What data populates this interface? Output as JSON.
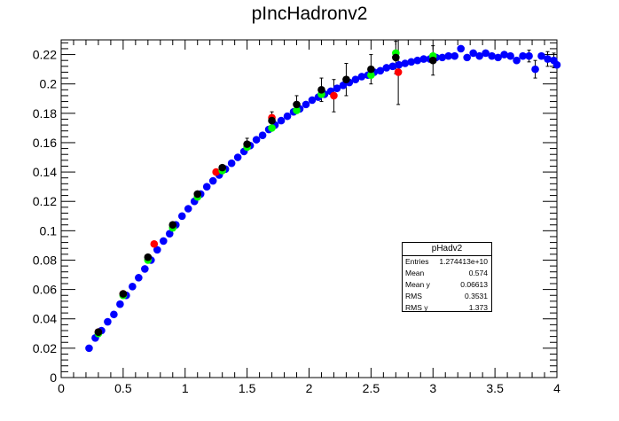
{
  "title": "pIncHadronv2",
  "chart_data": {
    "type": "scatter",
    "title": "pIncHadronv2",
    "xlabel": "",
    "ylabel": "",
    "xlim": [
      0,
      4
    ],
    "ylim": [
      0,
      0.23
    ],
    "x_ticks": [
      "0",
      "0.5",
      "1",
      "1.5",
      "2",
      "2.5",
      "3",
      "3.5",
      "4"
    ],
    "y_ticks": [
      "0",
      "0.02",
      "0.04",
      "0.06",
      "0.08",
      "0.1",
      "0.12",
      "0.14",
      "0.16",
      "0.18",
      "0.2",
      "0.22"
    ],
    "series": [
      {
        "color": "#0000ff",
        "points": [
          [
            0.225,
            0.02
          ],
          [
            0.275,
            0.027
          ],
          [
            0.325,
            0.032
          ],
          [
            0.375,
            0.038
          ],
          [
            0.425,
            0.043
          ],
          [
            0.475,
            0.05
          ],
          [
            0.525,
            0.056
          ],
          [
            0.575,
            0.062
          ],
          [
            0.625,
            0.068
          ],
          [
            0.675,
            0.074
          ],
          [
            0.725,
            0.08
          ],
          [
            0.775,
            0.087
          ],
          [
            0.825,
            0.093
          ],
          [
            0.875,
            0.098
          ],
          [
            0.925,
            0.104
          ],
          [
            0.975,
            0.11
          ],
          [
            1.025,
            0.115
          ],
          [
            1.075,
            0.12
          ],
          [
            1.125,
            0.125
          ],
          [
            1.175,
            0.13
          ],
          [
            1.225,
            0.134
          ],
          [
            1.275,
            0.138
          ],
          [
            1.325,
            0.142
          ],
          [
            1.375,
            0.146
          ],
          [
            1.425,
            0.15
          ],
          [
            1.475,
            0.154
          ],
          [
            1.525,
            0.158
          ],
          [
            1.575,
            0.162
          ],
          [
            1.625,
            0.165
          ],
          [
            1.675,
            0.169
          ],
          [
            1.725,
            0.172
          ],
          [
            1.775,
            0.175
          ],
          [
            1.825,
            0.178
          ],
          [
            1.875,
            0.181
          ],
          [
            1.925,
            0.183
          ],
          [
            1.975,
            0.186
          ],
          [
            2.025,
            0.189
          ],
          [
            2.075,
            0.191
          ],
          [
            2.125,
            0.193
          ],
          [
            2.175,
            0.195
          ],
          [
            2.225,
            0.197
          ],
          [
            2.275,
            0.199
          ],
          [
            2.325,
            0.201
          ],
          [
            2.375,
            0.203
          ],
          [
            2.425,
            0.205
          ],
          [
            2.475,
            0.206
          ],
          [
            2.525,
            0.208
          ],
          [
            2.575,
            0.209
          ],
          [
            2.625,
            0.211
          ],
          [
            2.675,
            0.212
          ],
          [
            2.725,
            0.213
          ],
          [
            2.775,
            0.214
          ],
          [
            2.825,
            0.215
          ],
          [
            2.875,
            0.216
          ],
          [
            2.925,
            0.217
          ],
          [
            2.975,
            0.217
          ],
          [
            3.025,
            0.218
          ],
          [
            3.075,
            0.218
          ],
          [
            3.125,
            0.219
          ],
          [
            3.175,
            0.219
          ],
          [
            3.225,
            0.224
          ],
          [
            3.275,
            0.218
          ],
          [
            3.325,
            0.221
          ],
          [
            3.375,
            0.219
          ],
          [
            3.425,
            0.221
          ],
          [
            3.475,
            0.219
          ],
          [
            3.525,
            0.218
          ],
          [
            3.575,
            0.22
          ],
          [
            3.625,
            0.219
          ],
          [
            3.675,
            0.216
          ],
          [
            3.725,
            0.219
          ],
          [
            3.775,
            0.219
          ],
          [
            3.825,
            0.21
          ],
          [
            3.875,
            0.219
          ],
          [
            3.925,
            0.217
          ],
          [
            3.975,
            0.216
          ],
          [
            4.0,
            0.213
          ]
        ]
      },
      {
        "color": "#ff0000",
        "points": [
          [
            0.3,
            0.031
          ],
          [
            0.5,
            0.057
          ],
          [
            0.75,
            0.091
          ],
          [
            1.25,
            0.14
          ],
          [
            1.7,
            0.177
          ],
          [
            2.2,
            0.192
          ],
          [
            2.72,
            0.208
          ]
        ]
      },
      {
        "color": "#00ff00",
        "points": [
          [
            0.3,
            0.03
          ],
          [
            0.5,
            0.056
          ],
          [
            0.7,
            0.08
          ],
          [
            0.9,
            0.102
          ],
          [
            1.1,
            0.123
          ],
          [
            1.3,
            0.141
          ],
          [
            1.5,
            0.157
          ],
          [
            1.7,
            0.17
          ],
          [
            1.9,
            0.182
          ],
          [
            2.1,
            0.193
          ],
          [
            2.5,
            0.206
          ],
          [
            2.7,
            0.221
          ],
          [
            3.0,
            0.219
          ]
        ]
      },
      {
        "color": "#000000",
        "points": [
          [
            0.3,
            0.031
          ],
          [
            0.5,
            0.057
          ],
          [
            0.7,
            0.082
          ],
          [
            0.9,
            0.104
          ],
          [
            1.1,
            0.125
          ],
          [
            1.3,
            0.143
          ],
          [
            1.5,
            0.159
          ],
          [
            1.7,
            0.175
          ],
          [
            1.9,
            0.186
          ],
          [
            2.1,
            0.196
          ],
          [
            2.3,
            0.203
          ],
          [
            2.5,
            0.21
          ],
          [
            2.7,
            0.218
          ],
          [
            3.0,
            0.216
          ]
        ]
      }
    ],
    "error_bars": [
      {
        "x": 1.5,
        "y": 0.159,
        "err": 0.004
      },
      {
        "x": 1.7,
        "y": 0.175,
        "err": 0.006
      },
      {
        "x": 1.9,
        "y": 0.186,
        "err": 0.006
      },
      {
        "x": 2.1,
        "y": 0.196,
        "err": 0.008
      },
      {
        "x": 2.2,
        "y": 0.192,
        "err": 0.011
      },
      {
        "x": 2.3,
        "y": 0.203,
        "err": 0.011
      },
      {
        "x": 2.5,
        "y": 0.21,
        "err": 0.01
      },
      {
        "x": 2.7,
        "y": 0.218,
        "err": 0.011
      },
      {
        "x": 2.72,
        "y": 0.208,
        "err": 0.022
      },
      {
        "x": 3.0,
        "y": 0.216,
        "err": 0.01
      },
      {
        "x": 3.825,
        "y": 0.21,
        "err": 0.006
      },
      {
        "x": 3.775,
        "y": 0.219,
        "err": 0.004
      },
      {
        "x": 3.925,
        "y": 0.217,
        "err": 0.005
      },
      {
        "x": 3.975,
        "y": 0.216,
        "err": 0.005
      }
    ]
  },
  "stats_box": {
    "name": "pHadv2",
    "rows": [
      {
        "key": "Entries",
        "value": "1.274413e+10"
      },
      {
        "key": "Mean",
        "value": "0.574"
      },
      {
        "key": "Mean y",
        "value": "0.06613"
      },
      {
        "key": "RMS",
        "value": "0.3531"
      },
      {
        "key": "RMS y",
        "value": "1.373"
      }
    ]
  }
}
